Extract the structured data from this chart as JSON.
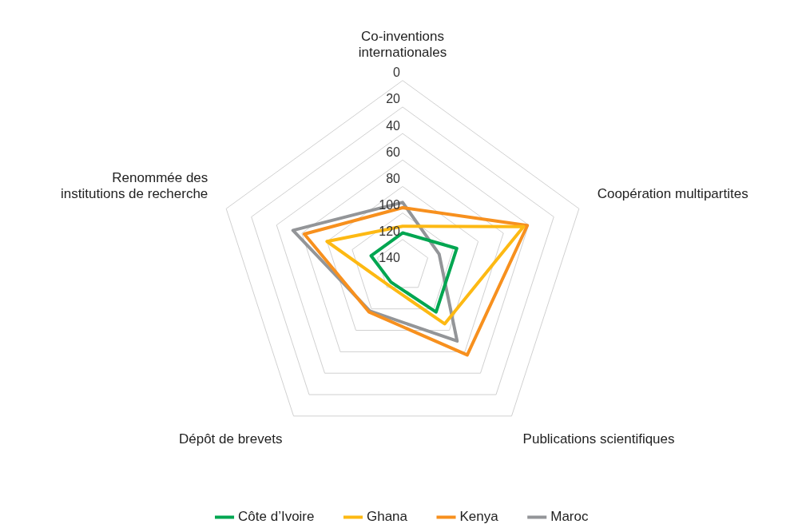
{
  "chart_data": {
    "type": "radar",
    "categories": [
      "Co-inventions\ninternationales",
      "Coopération multipartites",
      "Publications scientifiques",
      "Dépôt de brevets",
      "Renommée des\ninstitutions de recherche"
    ],
    "ylim": [
      140,
      0
    ],
    "yticks": [
      0,
      20,
      40,
      60,
      80,
      100,
      120,
      140
    ],
    "grid": true,
    "legend": "bottom",
    "marker": "none",
    "series": [
      {
        "name": "Côte d’Ivoire",
        "color": "#00a651",
        "values": [
          115,
          97,
          97,
          125,
          115
        ]
      },
      {
        "name": "Ghana",
        "color": "#fdb913",
        "values": [
          110,
          44,
          86,
          122,
          80
        ]
      },
      {
        "name": "Kenya",
        "color": "#f7901e",
        "values": [
          96,
          41,
          57,
          97,
          62
        ]
      },
      {
        "name": "Maroc",
        "color": "#939598",
        "values": [
          92,
          111,
          70,
          98,
          53
        ]
      }
    ]
  }
}
